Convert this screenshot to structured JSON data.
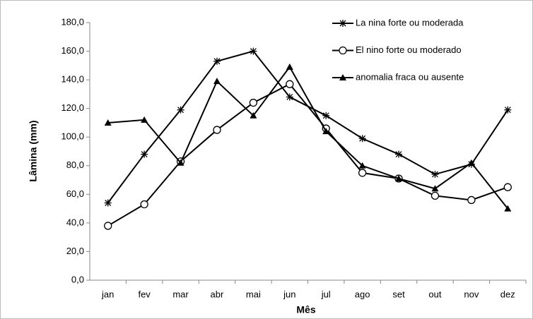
{
  "chart_data": {
    "type": "line",
    "xlabel": "Mês",
    "ylabel": "Lâmina (mm)",
    "categories": [
      "jan",
      "fev",
      "mar",
      "abr",
      "mai",
      "jun",
      "jul",
      "ago",
      "set",
      "out",
      "nov",
      "dez"
    ],
    "series": [
      {
        "name": "La nina forte ou moderada",
        "color": "#000000",
        "marker": "star",
        "values": [
          54,
          88,
          119,
          153,
          160,
          128,
          115,
          99,
          88,
          74,
          81,
          119
        ]
      },
      {
        "name": "El nino forte ou moderado",
        "color": "#000000",
        "marker": "circle",
        "values": [
          38,
          53,
          83,
          105,
          124,
          137,
          106,
          75,
          71,
          59,
          56,
          65
        ]
      },
      {
        "name": "anomalia fraca ou ausente",
        "color": "#000000",
        "marker": "triangle",
        "values": [
          110,
          112,
          82,
          139,
          115,
          149,
          104,
          80,
          71,
          64,
          82,
          50
        ]
      }
    ],
    "ylim": [
      0,
      180
    ],
    "yticks": [
      {
        "value": 0,
        "label": "0,0"
      },
      {
        "value": 20,
        "label": "20,0"
      },
      {
        "value": 40,
        "label": "40,0"
      },
      {
        "value": 60,
        "label": "60,0"
      },
      {
        "value": 80,
        "label": "80,0"
      },
      {
        "value": 100,
        "label": "100,0"
      },
      {
        "value": 120,
        "label": "120,0"
      },
      {
        "value": 140,
        "label": "140,0"
      },
      {
        "value": 160,
        "label": "160,0"
      },
      {
        "value": 180,
        "label": "180,0"
      }
    ],
    "grid": false,
    "legend": "upper right"
  }
}
